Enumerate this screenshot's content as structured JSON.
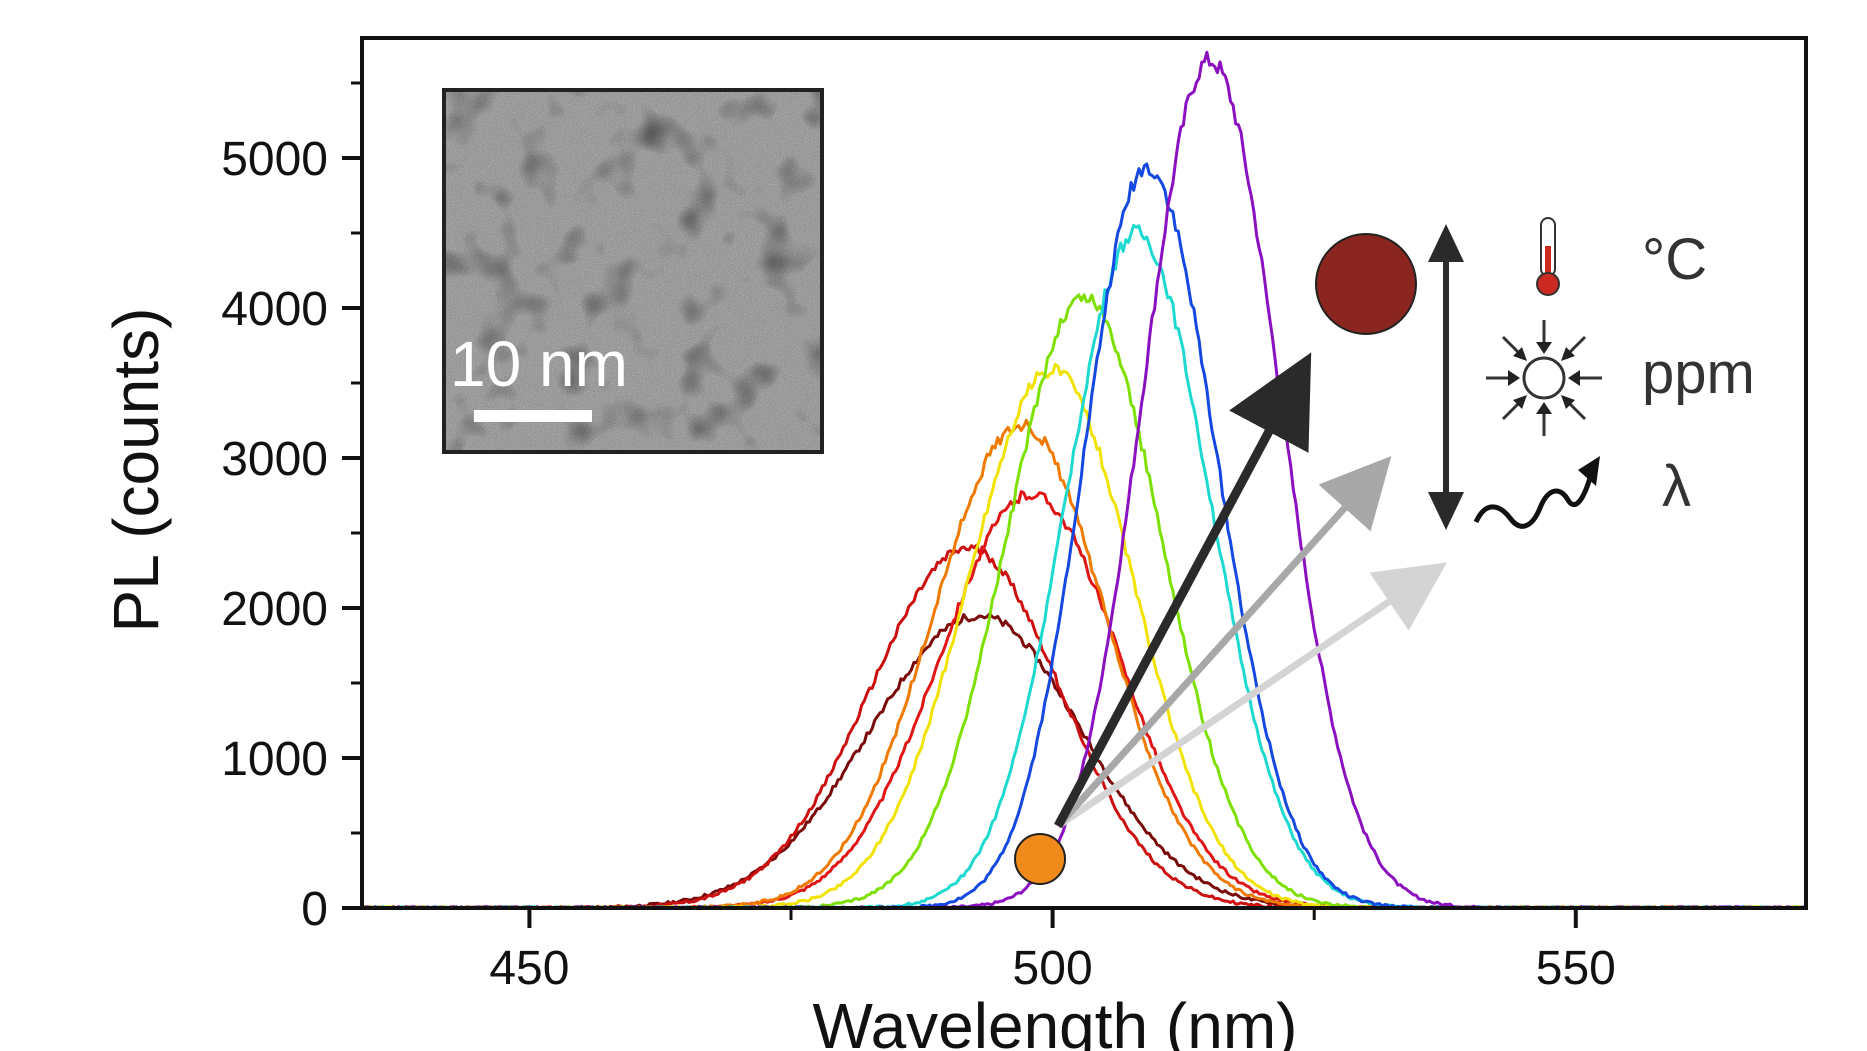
{
  "chart_data": {
    "type": "line",
    "xlabel": "Wavelength (nm)",
    "ylabel": "PL (counts)",
    "xlim": [
      434,
      572
    ],
    "ylim": [
      0,
      5800
    ],
    "xticks": [
      450,
      500,
      550
    ],
    "yticks": [
      0,
      1000,
      2000,
      3000,
      4000,
      5000
    ],
    "grid": false,
    "series": [
      {
        "color": "#7a0a0a",
        "peak_x": 493,
        "peak_y": 1950,
        "left_width": 15.5,
        "right_width": 14.5
      },
      {
        "color": "#cc1010",
        "peak_x": 492,
        "peak_y": 2400,
        "left_width": 14,
        "right_width": 13
      },
      {
        "color": "#e01515",
        "peak_x": 498,
        "peak_y": 2760,
        "left_width": 13,
        "right_width": 12.5
      },
      {
        "color": "#f07a00",
        "peak_x": 497,
        "peak_y": 3220,
        "left_width": 12.5,
        "right_width": 12
      },
      {
        "color": "#f2e200",
        "peak_x": 500,
        "peak_y": 3590,
        "left_width": 12,
        "right_width": 11.5
      },
      {
        "color": "#7ee000",
        "peak_x": 503,
        "peak_y": 4070,
        "left_width": 11,
        "right_width": 11
      },
      {
        "color": "#1ed9d0",
        "peak_x": 508,
        "peak_y": 4500,
        "left_width": 10,
        "right_width": 10.5
      },
      {
        "color": "#1448e0",
        "peak_x": 509,
        "peak_y": 4940,
        "left_width": 9,
        "right_width": 10
      },
      {
        "color": "#8a10c0",
        "peak_x": 515,
        "peak_y": 5650,
        "left_width": 9.5,
        "right_width": 10
      }
    ]
  },
  "inset": {
    "scale_bar_label": "10 nm"
  },
  "annotations": {
    "temperature_label": "°C",
    "pressure_label": "ppm",
    "wavelength_label": "λ"
  },
  "colors": {
    "start_dot": "#f08a1a",
    "end_dot": "#8b2520",
    "arrow_dark": "#2a2a2a",
    "arrow_mid": "#a8a8a8",
    "arrow_light": "#d4d4d4",
    "thermometer": "#cc2a20"
  },
  "icons": [
    "thermometer-icon",
    "compression-icon",
    "wave-icon"
  ]
}
